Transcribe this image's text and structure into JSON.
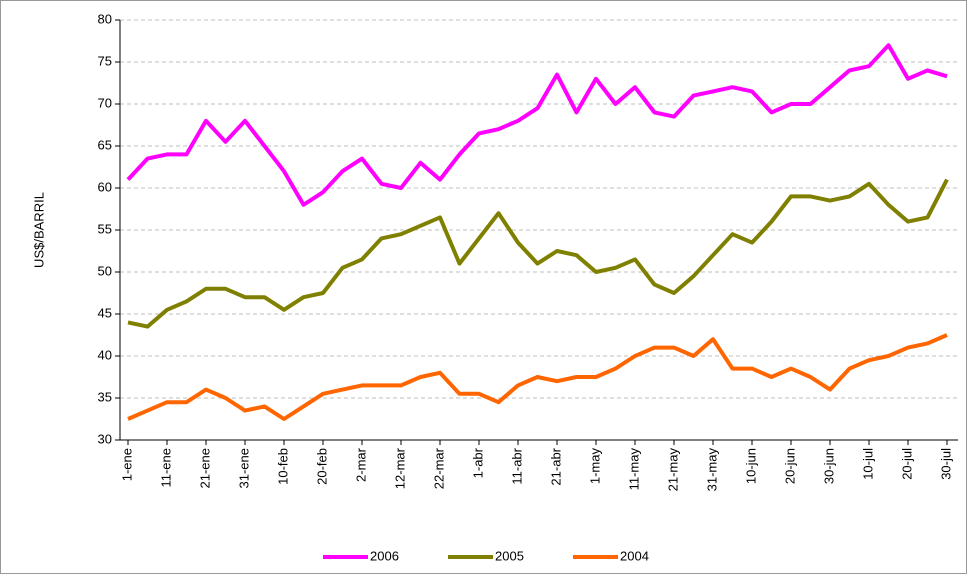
{
  "chart_data": {
    "type": "line",
    "y_label": "US$/BARRIL",
    "categories": [
      "1-ene",
      null,
      "11-ene",
      null,
      "21-ene",
      null,
      "31-ene",
      null,
      "10-feb",
      null,
      "20-feb",
      null,
      "2-mar",
      null,
      "12-mar",
      null,
      "22-mar",
      null,
      "1-abr",
      null,
      "11-abr",
      null,
      "21-abr",
      null,
      "1-may",
      null,
      "11-may",
      null,
      "21-may",
      null,
      "31-may",
      null,
      "10-jun",
      null,
      "20-jun",
      null,
      "30-jun",
      null,
      "10-jul",
      null,
      "20-jul",
      null,
      "30-jul"
    ],
    "series": [
      {
        "name": "2006",
        "color": "#ff00ff",
        "values": [
          61,
          63.5,
          64,
          64,
          68,
          65.5,
          68,
          65,
          62,
          58,
          59.5,
          62,
          63.5,
          60.5,
          60,
          63,
          61,
          64,
          66.5,
          67,
          68,
          69.5,
          73.5,
          69,
          73,
          70,
          72,
          69,
          68.5,
          71,
          71.5,
          72,
          71.5,
          69,
          70,
          70,
          72,
          74,
          74.5,
          77,
          73,
          74,
          73.3
        ]
      },
      {
        "name": "2005",
        "color": "#808000",
        "values": [
          44,
          43.5,
          45.5,
          46.5,
          48,
          48,
          47,
          47,
          45.5,
          47,
          47.5,
          50.5,
          51.5,
          54,
          54.5,
          55.5,
          56.5,
          51,
          54,
          57,
          53.5,
          51,
          52.5,
          52,
          50,
          50.5,
          51.5,
          48.5,
          47.5,
          49.5,
          52,
          54.5,
          53.5,
          56,
          59,
          59,
          58.5,
          59,
          60.5,
          58,
          56,
          56.5,
          61
        ]
      },
      {
        "name": "2004",
        "color": "#ff6600",
        "values": [
          32.5,
          33.5,
          34.5,
          34.5,
          36,
          35,
          33.5,
          34,
          32.5,
          34,
          35.5,
          36,
          36.5,
          36.5,
          36.5,
          37.5,
          38,
          35.5,
          35.5,
          34.5,
          36.5,
          37.5,
          37,
          37.5,
          37.5,
          38.5,
          40,
          41,
          41,
          40,
          42,
          38.5,
          38.5,
          37.5,
          38.5,
          37.5,
          36,
          38.5,
          39.5,
          40,
          41,
          41.5,
          42.5
        ]
      }
    ],
    "ylim": [
      30,
      80
    ],
    "yticks": [
      30,
      35,
      40,
      45,
      50,
      55,
      60,
      65,
      70,
      75,
      80
    ],
    "grid": true,
    "legend": "bottom"
  }
}
